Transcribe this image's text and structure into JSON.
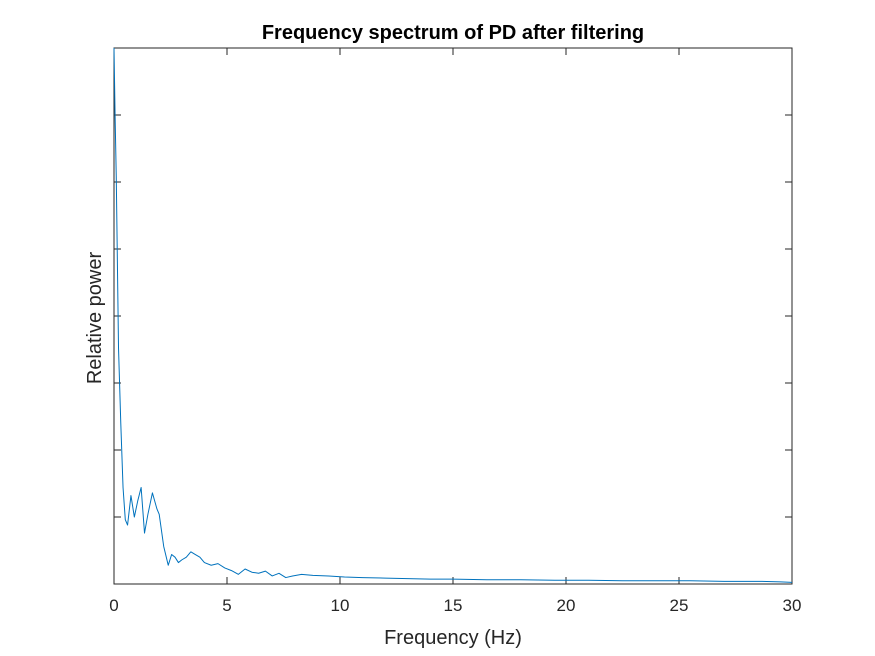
{
  "chart_data": {
    "type": "line",
    "title": "Frequency spectrum of PD after filtering",
    "xlabel": "Frequency (Hz)",
    "ylabel": "Relative power",
    "xlim": [
      0,
      30
    ],
    "ylim": [
      0,
      1
    ],
    "xticks": [
      0,
      5,
      10,
      15,
      20,
      25,
      30
    ],
    "xtick_labels": [
      "0",
      "5",
      "10",
      "15",
      "20",
      "25",
      "30"
    ],
    "yticks": [
      0,
      0.125,
      0.25,
      0.375,
      0.5,
      0.625,
      0.75,
      0.875,
      1
    ],
    "ytick_labels_visible": false,
    "grid": false,
    "box": true,
    "series": [
      {
        "color": "#0072BD",
        "x": [
          0,
          0.05,
          0.1,
          0.15,
          0.2,
          0.3,
          0.4,
          0.5,
          0.6,
          0.75,
          0.9,
          1.05,
          1.2,
          1.35,
          1.5,
          1.7,
          1.9,
          2.0,
          2.2,
          2.4,
          2.55,
          2.7,
          2.85,
          3.0,
          3.2,
          3.4,
          3.6,
          3.8,
          4.0,
          4.3,
          4.6,
          4.9,
          5.2,
          5.5,
          5.8,
          6.1,
          6.4,
          6.7,
          7.0,
          7.3,
          7.6,
          7.9,
          8.3,
          8.8,
          9.5,
          10.2,
          11.0,
          12.0,
          13.0,
          14.0,
          15.0,
          16.5,
          18.0,
          19.5,
          21.0,
          22.5,
          24.0,
          25.5,
          27.0,
          28.5,
          29.5,
          30.0
        ],
        "y": [
          1.0,
          0.87,
          0.76,
          0.6,
          0.44,
          0.3,
          0.18,
          0.12,
          0.11,
          0.165,
          0.125,
          0.155,
          0.18,
          0.095,
          0.13,
          0.17,
          0.14,
          0.13,
          0.07,
          0.035,
          0.055,
          0.05,
          0.04,
          0.045,
          0.05,
          0.06,
          0.055,
          0.05,
          0.04,
          0.035,
          0.038,
          0.03,
          0.025,
          0.018,
          0.028,
          0.022,
          0.02,
          0.024,
          0.015,
          0.02,
          0.012,
          0.015,
          0.018,
          0.016,
          0.015,
          0.013,
          0.012,
          0.011,
          0.01,
          0.009,
          0.009,
          0.008,
          0.008,
          0.007,
          0.007,
          0.006,
          0.006,
          0.006,
          0.005,
          0.005,
          0.004,
          0.003
        ]
      }
    ]
  }
}
